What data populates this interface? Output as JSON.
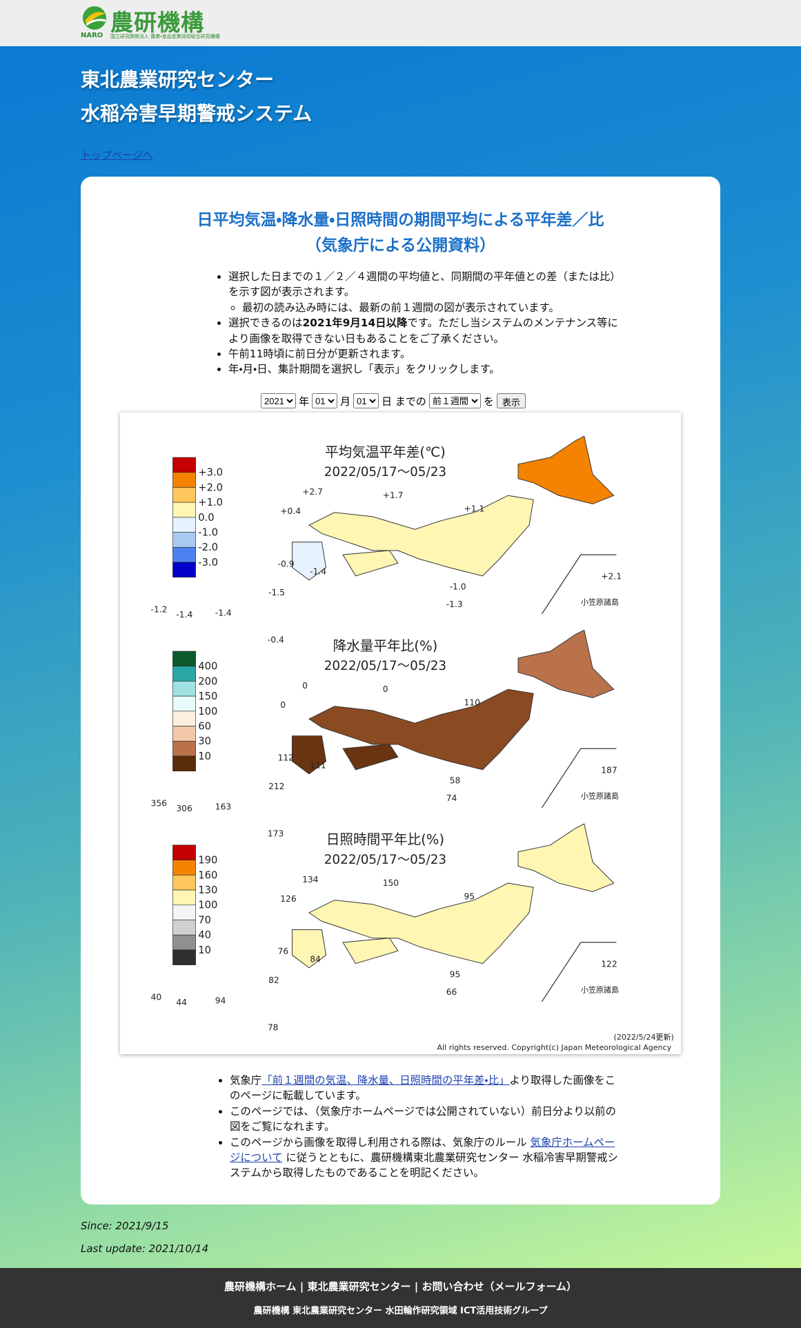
{
  "header": {
    "logo": "農研機構",
    "naro": "NARO",
    "logo_sub": "国立研究開発法人 農業・食品産業技術総合研究機構"
  },
  "page_title": [
    "東北農業研究センター",
    "水稲冷害早期警戒システム"
  ],
  "top_link": "トップページへ",
  "card": {
    "title": [
      "日平均気温・降水量・日照時間の期間平均による平年差／比",
      "（気象庁による公開資料）"
    ],
    "intro": [
      {
        "text": "選択した日までの１／２／４週間の平均値と、同期間の平年値との差（または比）を示す図が表示されます。",
        "sub": "最初の読み込み時には、最新の前１週間の図が表示されています。"
      },
      {
        "text": "選択できるのは",
        "bold": "2021年9月14日以降",
        "rest": "です。ただし当システムのメンテナンス等により画像を取得できない日もあることをご了承ください。"
      },
      {
        "text": "午前11時頃に前日分が更新されます。"
      },
      {
        "text": "年・月・日、集計期間を選択し「表示」をクリックします。"
      }
    ],
    "form": {
      "year": "2021",
      "year_unit": "年",
      "month": "01",
      "month_unit": "月",
      "day": "01",
      "day_unit": "日 までの",
      "period": "前１週間",
      "particle": "を",
      "button": "表示"
    },
    "map": {
      "panels": [
        {
          "title": "平均気温平年差(℃)",
          "date": "2022/05/17～05/23",
          "legend_colors": [
            "#c40000",
            "#f58200",
            "#ffc65c",
            "#fff6b4",
            "#e6f2ff",
            "#a9c9f2",
            "#4c82f0",
            "#0000c8"
          ],
          "legend_labels": [
            "+3.0",
            "+2.0",
            "+1.0",
            "0.0",
            "-1.0",
            "-2.0",
            "-3.0"
          ],
          "labels": [
            "+2.7",
            "+1.7",
            "+0.4",
            "+1.1",
            "-0.9",
            "-1.4",
            "-1.0",
            "-1.3",
            "+2.1",
            "-1.5",
            "-1.2",
            "-1.4",
            "-1.4",
            "-0.4"
          ],
          "island_label": "小笠原諸島"
        },
        {
          "title": "降水量平年比(%)",
          "date": "2022/05/17～05/23",
          "legend_colors": [
            "#0b5a2c",
            "#2aa7a7",
            "#a0e1e1",
            "#e8fbfb",
            "#fdf0e2",
            "#f2c8a8",
            "#b9724a",
            "#5a2c0c"
          ],
          "legend_labels": [
            "400",
            "200",
            "150",
            "100",
            "60",
            "30",
            "10"
          ],
          "labels": [
            "0",
            "0",
            "0",
            "110",
            "112",
            "111",
            "58",
            "74",
            "187",
            "212",
            "356",
            "306",
            "163",
            "173"
          ],
          "island_label": "小笠原諸島"
        },
        {
          "title": "日照時間平年比(%)",
          "date": "2022/05/17～05/23",
          "legend_colors": [
            "#c40000",
            "#f58200",
            "#ffc65c",
            "#fff6b4",
            "#f4f4f4",
            "#d0d0d0",
            "#909090",
            "#303030"
          ],
          "legend_labels": [
            "190",
            "160",
            "130",
            "100",
            "70",
            "40",
            "10"
          ],
          "labels": [
            "134",
            "150",
            "126",
            "95",
            "76",
            "84",
            "95",
            "66",
            "122",
            "82",
            "40",
            "44",
            "94",
            "78"
          ],
          "island_label": "小笠原諸島"
        }
      ],
      "updated": "(2022/5/24更新)",
      "copyright": "All rights reserved. Copyright(c) Japan Meteorological Agency"
    },
    "notes": [
      {
        "text": "気象庁",
        "link": "「前１週間の気温、降水量、日照時間の平年差・比」",
        "rest": "より取得した画像をこのページに転載しています。"
      },
      {
        "text": "このページでは、（気象庁ホームページでは公開されていない）前日分より以前の図をご覧になれます。"
      },
      {
        "text": "このページから画像を取得し利用される際は、気象庁のルール ",
        "link": "気象庁ホームページについて",
        "rest": " に従うとともに、農研機構東北農業研究センター 水稲冷害早期警戒システムから取得したものであることを明記ください。"
      }
    ]
  },
  "since": "Since: 2021/9/15",
  "last_update": "Last update: 2021/10/14",
  "footer": {
    "links": [
      "農研機構ホーム",
      "東北農業研究センター",
      "お問い合わせ（メールフォーム）"
    ],
    "separator": "|",
    "org": "農研機構 東北農業研究センター 水田輪作研究領域 ICT活用技術グループ"
  }
}
